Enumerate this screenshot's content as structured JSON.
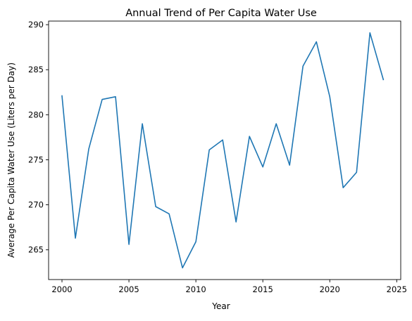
{
  "chart_data": {
    "type": "line",
    "title": "Annual Trend of Per Capita Water Use",
    "xlabel": "Year",
    "ylabel": "Average Per Capita Water Use (Liters per Day)",
    "xlim": [
      1999,
      2025.3
    ],
    "ylim": [
      261.7,
      290.4
    ],
    "xticks": [
      2000,
      2005,
      2010,
      2015,
      2020,
      2025
    ],
    "yticks": [
      265,
      270,
      275,
      280,
      285,
      290
    ],
    "grid": false,
    "legend": "none",
    "series": [
      {
        "color": "#1f77b4",
        "x": [
          2000,
          2001,
          2002,
          2003,
          2004,
          2005,
          2006,
          2007,
          2008,
          2009,
          2010,
          2011,
          2012,
          2013,
          2014,
          2015,
          2016,
          2017,
          2018,
          2019,
          2020,
          2021,
          2022,
          2023,
          2024
        ],
        "y": [
          282.1,
          266.3,
          276.2,
          281.7,
          282.0,
          265.6,
          279.0,
          269.8,
          269.0,
          263.0,
          265.9,
          276.1,
          277.2,
          268.1,
          277.6,
          274.2,
          279.0,
          274.4,
          285.4,
          288.1,
          282.0,
          271.9,
          273.6,
          289.1,
          283.9
        ]
      }
    ]
  }
}
